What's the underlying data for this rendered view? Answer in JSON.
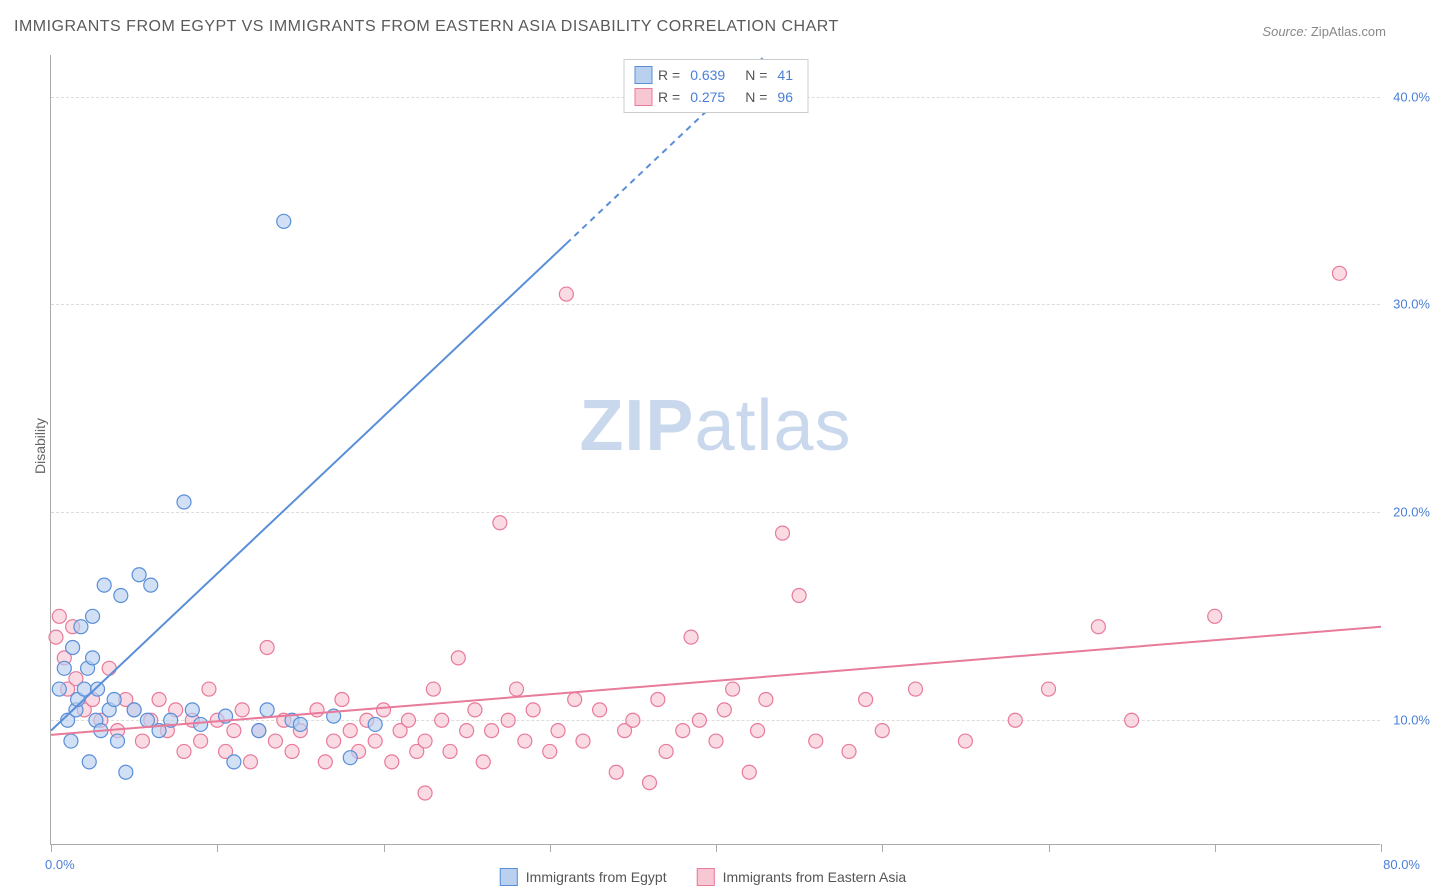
{
  "title": "IMMIGRANTS FROM EGYPT VS IMMIGRANTS FROM EASTERN ASIA DISABILITY CORRELATION CHART",
  "source_label": "Source:",
  "source_value": "ZipAtlas.com",
  "ylabel": "Disability",
  "watermark_a": "ZIP",
  "watermark_b": "atlas",
  "chart": {
    "type": "scatter",
    "background_color": "#ffffff",
    "grid_color": "#dcdcdc",
    "axis_color": "#aaaaaa",
    "tick_label_color": "#4a7fd8",
    "xlim": [
      0,
      80
    ],
    "ylim": [
      4,
      42
    ],
    "yticks": [
      10,
      20,
      30,
      40
    ],
    "ytick_labels": [
      "10.0%",
      "20.0%",
      "30.0%",
      "40.0%"
    ],
    "xticks": [
      0,
      10,
      20,
      30,
      40,
      50,
      60,
      70,
      80
    ],
    "x_left_label": "0.0%",
    "x_right_label": "80.0%",
    "marker_radius": 7,
    "marker_stroke_width": 1.2,
    "trend_line_width": 2,
    "series": [
      {
        "name": "Immigrants from Egypt",
        "fill": "#b9d0ef",
        "stroke": "#5a8fd8",
        "r_value": "0.639",
        "n_value": "41",
        "trend": {
          "x1": 0,
          "y1": 9.5,
          "x2": 43,
          "y2": 42,
          "dash_from_x": 31
        },
        "points": [
          [
            0.5,
            11.5
          ],
          [
            0.8,
            12.5
          ],
          [
            1.0,
            10.0
          ],
          [
            1.2,
            9.0
          ],
          [
            1.3,
            13.5
          ],
          [
            1.5,
            10.5
          ],
          [
            1.6,
            11.0
          ],
          [
            1.8,
            14.5
          ],
          [
            2.0,
            11.5
          ],
          [
            2.2,
            12.5
          ],
          [
            2.3,
            8.0
          ],
          [
            2.5,
            13.0
          ],
          [
            2.7,
            10.0
          ],
          [
            2.8,
            11.5
          ],
          [
            3.0,
            9.5
          ],
          [
            3.2,
            16.5
          ],
          [
            3.5,
            10.5
          ],
          [
            3.8,
            11.0
          ],
          [
            4.0,
            9.0
          ],
          [
            4.2,
            16.0
          ],
          [
            4.5,
            7.5
          ],
          [
            5.0,
            10.5
          ],
          [
            5.3,
            17.0
          ],
          [
            5.8,
            10.0
          ],
          [
            6.0,
            16.5
          ],
          [
            6.5,
            9.5
          ],
          [
            7.2,
            10.0
          ],
          [
            8.0,
            20.5
          ],
          [
            8.5,
            10.5
          ],
          [
            9.0,
            9.8
          ],
          [
            10.5,
            10.2
          ],
          [
            11.0,
            8.0
          ],
          [
            12.5,
            9.5
          ],
          [
            13.0,
            10.5
          ],
          [
            14.5,
            10.0
          ],
          [
            15.0,
            9.8
          ],
          [
            17.0,
            10.2
          ],
          [
            18.0,
            8.2
          ],
          [
            19.5,
            9.8
          ],
          [
            14.0,
            34.0
          ],
          [
            2.5,
            15.0
          ]
        ]
      },
      {
        "name": "Immigrants from Eastern Asia",
        "fill": "#f7c8d4",
        "stroke": "#e87a9a",
        "r_value": "0.275",
        "n_value": "96",
        "trend": {
          "x1": 0,
          "y1": 9.3,
          "x2": 80,
          "y2": 14.5,
          "dash_from_x": 999
        },
        "points": [
          [
            0.3,
            14.0
          ],
          [
            0.5,
            15.0
          ],
          [
            0.8,
            13.0
          ],
          [
            1.0,
            11.5
          ],
          [
            1.3,
            14.5
          ],
          [
            1.5,
            12.0
          ],
          [
            2.0,
            10.5
          ],
          [
            2.5,
            11.0
          ],
          [
            3.0,
            10.0
          ],
          [
            3.5,
            12.5
          ],
          [
            4.0,
            9.5
          ],
          [
            4.5,
            11.0
          ],
          [
            5.0,
            10.5
          ],
          [
            5.5,
            9.0
          ],
          [
            6.0,
            10.0
          ],
          [
            6.5,
            11.0
          ],
          [
            7.0,
            9.5
          ],
          [
            7.5,
            10.5
          ],
          [
            8.0,
            8.5
          ],
          [
            8.5,
            10.0
          ],
          [
            9.0,
            9.0
          ],
          [
            9.5,
            11.5
          ],
          [
            10.0,
            10.0
          ],
          [
            10.5,
            8.5
          ],
          [
            11.0,
            9.5
          ],
          [
            11.5,
            10.5
          ],
          [
            12.0,
            8.0
          ],
          [
            12.5,
            9.5
          ],
          [
            13.0,
            13.5
          ],
          [
            13.5,
            9.0
          ],
          [
            14.0,
            10.0
          ],
          [
            14.5,
            8.5
          ],
          [
            15.0,
            9.5
          ],
          [
            16.0,
            10.5
          ],
          [
            16.5,
            8.0
          ],
          [
            17.0,
            9.0
          ],
          [
            17.5,
            11.0
          ],
          [
            18.0,
            9.5
          ],
          [
            18.5,
            8.5
          ],
          [
            19.0,
            10.0
          ],
          [
            19.5,
            9.0
          ],
          [
            20.0,
            10.5
          ],
          [
            20.5,
            8.0
          ],
          [
            21.0,
            9.5
          ],
          [
            21.5,
            10.0
          ],
          [
            22.0,
            8.5
          ],
          [
            22.5,
            9.0
          ],
          [
            23.0,
            11.5
          ],
          [
            23.5,
            10.0
          ],
          [
            24.0,
            8.5
          ],
          [
            24.5,
            13.0
          ],
          [
            25.0,
            9.5
          ],
          [
            25.5,
            10.5
          ],
          [
            26.0,
            8.0
          ],
          [
            26.5,
            9.5
          ],
          [
            27.0,
            19.5
          ],
          [
            27.5,
            10.0
          ],
          [
            28.0,
            11.5
          ],
          [
            28.5,
            9.0
          ],
          [
            29.0,
            10.5
          ],
          [
            30.0,
            8.5
          ],
          [
            30.5,
            9.5
          ],
          [
            31.0,
            30.5
          ],
          [
            31.5,
            11.0
          ],
          [
            32.0,
            9.0
          ],
          [
            33.0,
            10.5
          ],
          [
            34.0,
            7.5
          ],
          [
            34.5,
            9.5
          ],
          [
            35.0,
            10.0
          ],
          [
            36.0,
            7.0
          ],
          [
            36.5,
            11.0
          ],
          [
            37.0,
            8.5
          ],
          [
            38.0,
            9.5
          ],
          [
            38.5,
            14.0
          ],
          [
            39.0,
            10.0
          ],
          [
            40.0,
            9.0
          ],
          [
            40.5,
            10.5
          ],
          [
            41.0,
            11.5
          ],
          [
            42.0,
            7.5
          ],
          [
            42.5,
            9.5
          ],
          [
            43.0,
            11.0
          ],
          [
            44.0,
            19.0
          ],
          [
            45.0,
            16.0
          ],
          [
            46.0,
            9.0
          ],
          [
            48.0,
            8.5
          ],
          [
            49.0,
            11.0
          ],
          [
            50.0,
            9.5
          ],
          [
            52.0,
            11.5
          ],
          [
            55.0,
            9.0
          ],
          [
            58.0,
            10.0
          ],
          [
            60.0,
            11.5
          ],
          [
            63.0,
            14.5
          ],
          [
            65.0,
            10.0
          ],
          [
            70.0,
            15.0
          ],
          [
            22.5,
            6.5
          ],
          [
            77.5,
            31.5
          ]
        ]
      }
    ]
  },
  "legend": {
    "r_label": "R =",
    "n_label": "N ="
  }
}
